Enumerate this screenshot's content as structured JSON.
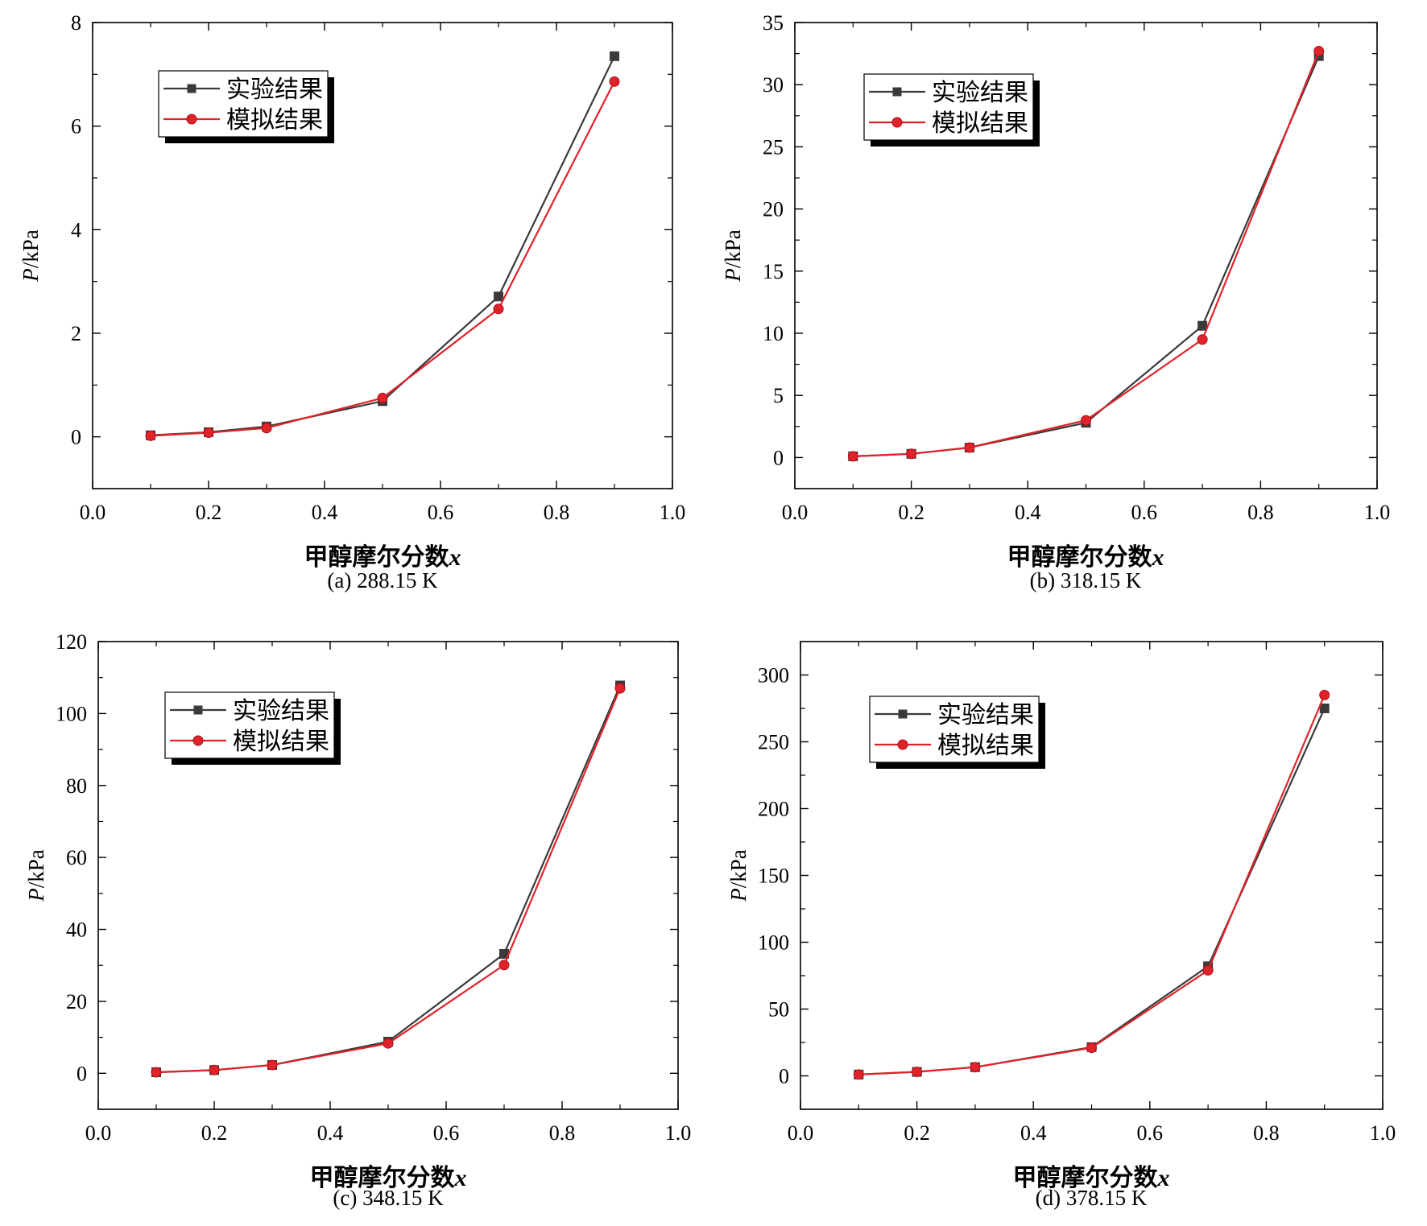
{
  "chart_data": [
    {
      "type": "line",
      "caption": "(a) 288.15 K",
      "xlabel": "甲醇摩尔分数x",
      "ylabel": "P/kPa",
      "xlim": [
        0.0,
        1.0
      ],
      "ylim": [
        -1.0,
        8.0
      ],
      "xticks": [
        0.0,
        0.2,
        0.4,
        0.6,
        0.8,
        1.0
      ],
      "xtick_labels": [
        "0.0",
        "0.2",
        "0.4",
        "0.6",
        "0.8",
        "1.0"
      ],
      "yticks": [
        0,
        2,
        4,
        6,
        8
      ],
      "ytick_labels": [
        "0",
        "2",
        "4",
        "6",
        "8"
      ],
      "legend_position": "top-left",
      "x": [
        0.1,
        0.2,
        0.3,
        0.5,
        0.7,
        0.9
      ],
      "series": [
        {
          "name": "实验结果",
          "values": [
            0.03,
            0.09,
            0.2,
            0.69,
            2.71,
            7.35
          ],
          "marker": "square",
          "color": "#3a3a3a"
        },
        {
          "name": "模拟结果",
          "values": [
            0.02,
            0.08,
            0.17,
            0.75,
            2.47,
            6.86
          ],
          "marker": "circle",
          "color": "#e0232a"
        }
      ]
    },
    {
      "type": "line",
      "caption": "(b) 318.15 K",
      "xlabel": "甲醇摩尔分数x",
      "ylabel": "P/kPa",
      "xlim": [
        0.0,
        1.0
      ],
      "ylim": [
        -2.5,
        35.0
      ],
      "xticks": [
        0.0,
        0.2,
        0.4,
        0.6,
        0.8,
        1.0
      ],
      "xtick_labels": [
        "0.0",
        "0.2",
        "0.4",
        "0.6",
        "0.8",
        "1.0"
      ],
      "yticks": [
        0,
        5,
        10,
        15,
        20,
        25,
        30,
        35
      ],
      "ytick_labels": [
        "0",
        "5",
        "10",
        "15",
        "20",
        "25",
        "30",
        "35"
      ],
      "legend_position": "top-left",
      "x": [
        0.1,
        0.2,
        0.3,
        0.5,
        0.7,
        0.9
      ],
      "series": [
        {
          "name": "实验结果",
          "values": [
            0.1,
            0.3,
            0.8,
            2.8,
            10.6,
            32.3
          ],
          "marker": "square",
          "color": "#3a3a3a"
        },
        {
          "name": "模拟结果",
          "values": [
            0.1,
            0.3,
            0.8,
            3.0,
            9.5,
            32.7
          ],
          "marker": "circle",
          "color": "#e0232a"
        }
      ]
    },
    {
      "type": "line",
      "caption": "(c) 348.15 K",
      "xlabel": "甲醇摩尔分数x",
      "ylabel": "P/kPa",
      "xlim": [
        0.0,
        1.0
      ],
      "ylim": [
        -10.0,
        120.0
      ],
      "xticks": [
        0.0,
        0.2,
        0.4,
        0.6,
        0.8,
        1.0
      ],
      "xtick_labels": [
        "0.0",
        "0.2",
        "0.4",
        "0.6",
        "0.8",
        "1.0"
      ],
      "yticks": [
        0,
        20,
        40,
        60,
        80,
        100,
        120
      ],
      "ytick_labels": [
        "0",
        "20",
        "40",
        "60",
        "80",
        "100",
        "120"
      ],
      "legend_position": "top-left",
      "x": [
        0.1,
        0.2,
        0.3,
        0.5,
        0.7,
        0.9
      ],
      "series": [
        {
          "name": "实验结果",
          "values": [
            0.3,
            0.9,
            2.3,
            8.8,
            33.2,
            107.8
          ],
          "marker": "square",
          "color": "#3a3a3a"
        },
        {
          "name": "模拟结果",
          "values": [
            0.3,
            0.9,
            2.3,
            8.3,
            30.1,
            107.0
          ],
          "marker": "circle",
          "color": "#e0232a"
        }
      ]
    },
    {
      "type": "line",
      "caption": "(d) 378.15 K",
      "xlabel": "甲醇摩尔分数x",
      "ylabel": "P/kPa",
      "xlim": [
        0.0,
        1.0
      ],
      "ylim": [
        -25.0,
        325.0
      ],
      "xticks": [
        0.0,
        0.2,
        0.4,
        0.6,
        0.8,
        1.0
      ],
      "xtick_labels": [
        "0.0",
        "0.2",
        "0.4",
        "0.6",
        "0.8",
        "1.0"
      ],
      "yticks": [
        0,
        50,
        100,
        150,
        200,
        250,
        300
      ],
      "ytick_labels": [
        "0",
        "50",
        "100",
        "150",
        "200",
        "250",
        "300"
      ],
      "legend_position": "top-left",
      "x": [
        0.1,
        0.2,
        0.3,
        0.5,
        0.7,
        0.9
      ],
      "series": [
        {
          "name": "实验结果",
          "values": [
            1.0,
            3.0,
            6.5,
            21.5,
            82.0,
            275.0
          ],
          "marker": "square",
          "color": "#3a3a3a"
        },
        {
          "name": "模拟结果",
          "values": [
            1.0,
            3.0,
            6.5,
            21.0,
            79.0,
            285.0
          ],
          "marker": "circle",
          "color": "#e0232a"
        }
      ]
    }
  ]
}
